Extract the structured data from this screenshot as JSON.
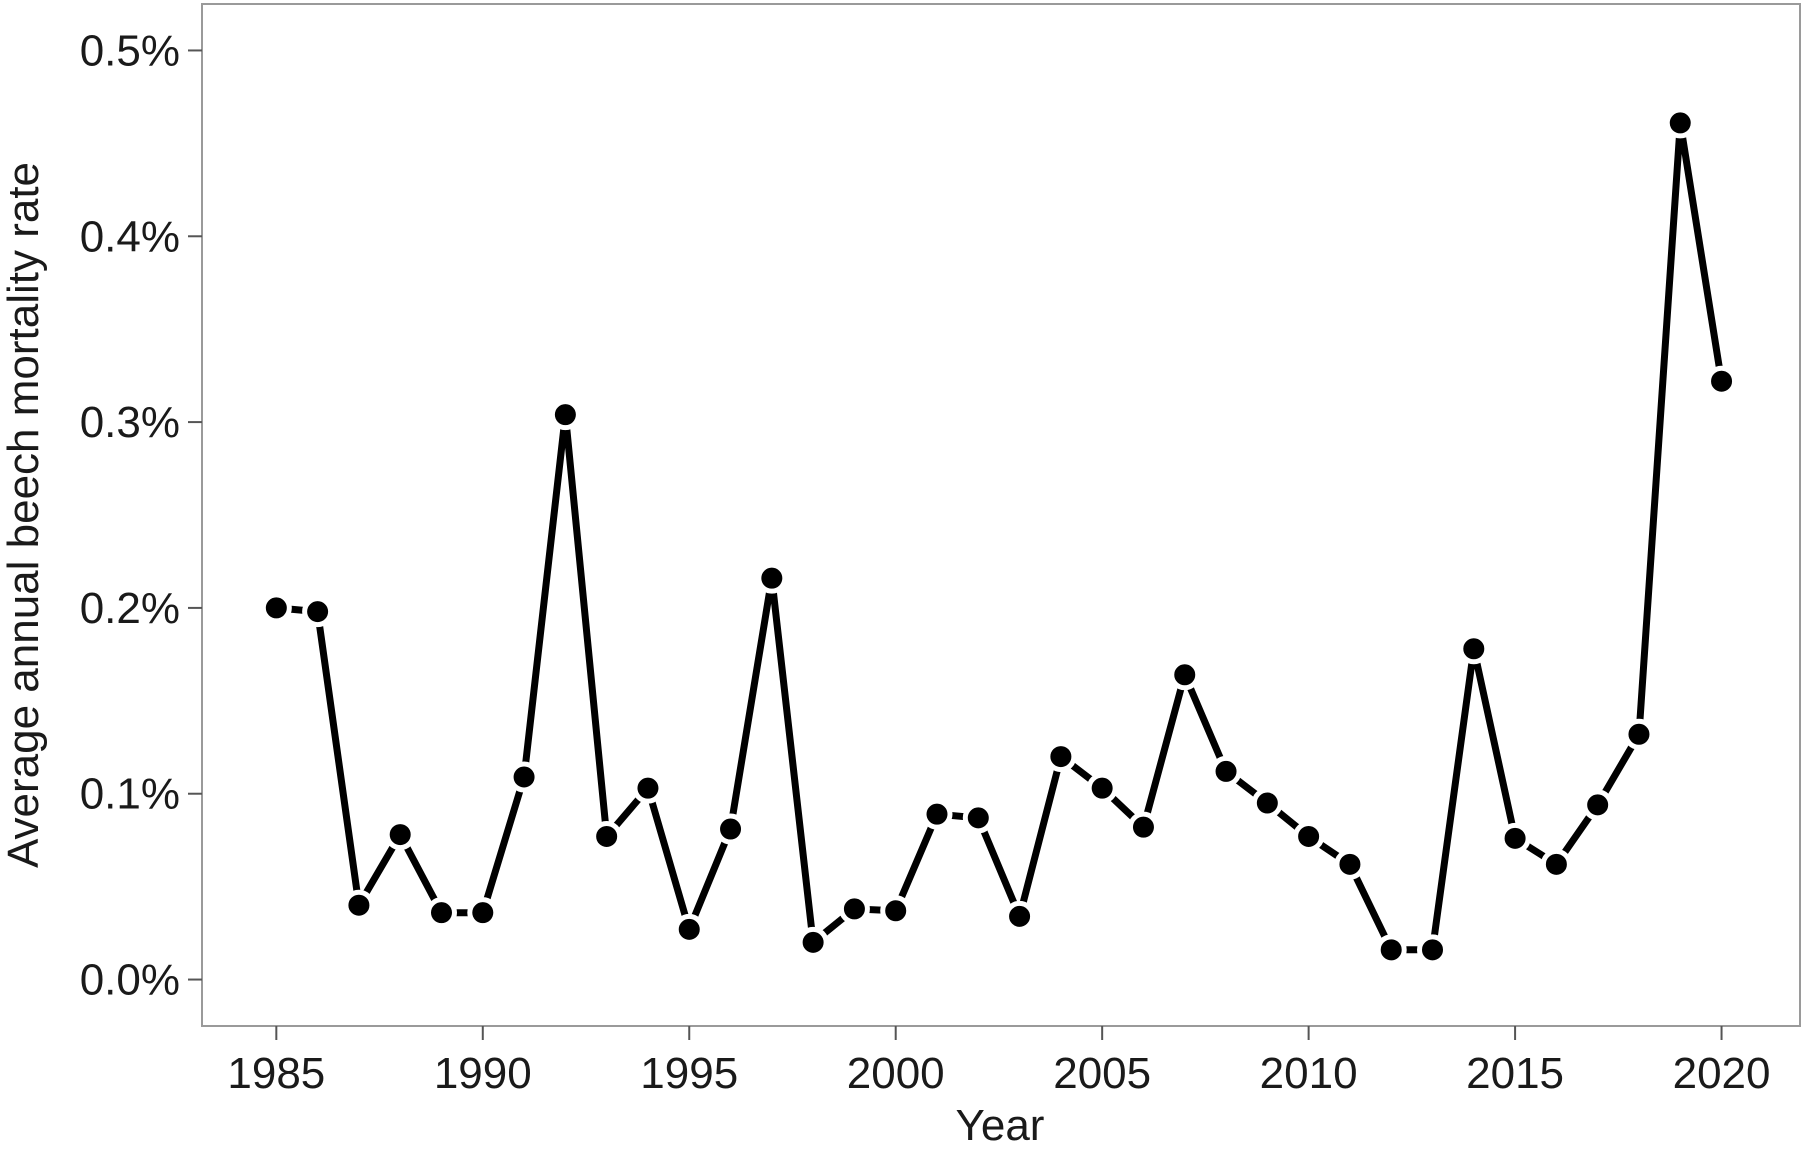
{
  "chart_data": {
    "type": "line",
    "title": "",
    "xlabel": "Year",
    "ylabel": "Average annual beech mortality rate",
    "xlim": [
      1983.2,
      2021.9
    ],
    "ylim": [
      -0.025,
      0.525
    ],
    "x_ticks": [
      1985,
      1990,
      1995,
      2000,
      2005,
      2010,
      2015,
      2020
    ],
    "y_ticks": [
      {
        "value": 0.0,
        "label": "0.0%"
      },
      {
        "value": 0.1,
        "label": "0.1%"
      },
      {
        "value": 0.2,
        "label": "0.2%"
      },
      {
        "value": 0.3,
        "label": "0.3%"
      },
      {
        "value": 0.4,
        "label": "0.4%"
      },
      {
        "value": 0.5,
        "label": "0.5%"
      }
    ],
    "grid": false,
    "legend": "none",
    "series_color": "#000000",
    "series": [
      {
        "x": [
          1985,
          1986,
          1987,
          1988,
          1989,
          1990,
          1991,
          1992,
          1993,
          1994,
          1995,
          1996,
          1997,
          1998,
          1999,
          2000,
          2001,
          2002,
          2003,
          2004,
          2005,
          2006,
          2007,
          2008,
          2009,
          2010,
          2011,
          2012,
          2013,
          2014,
          2015,
          2016,
          2017,
          2018,
          2019,
          2020
        ],
        "values": [
          0.2,
          0.198,
          0.04,
          0.078,
          0.036,
          0.036,
          0.109,
          0.304,
          0.077,
          0.103,
          0.027,
          0.081,
          0.216,
          0.02,
          0.038,
          0.037,
          0.089,
          0.087,
          0.034,
          0.12,
          0.103,
          0.082,
          0.164,
          0.112,
          0.095,
          0.077,
          0.062,
          0.016,
          0.016,
          0.178,
          0.076,
          0.062,
          0.094,
          0.132,
          0.461,
          0.322
        ]
      }
    ]
  }
}
